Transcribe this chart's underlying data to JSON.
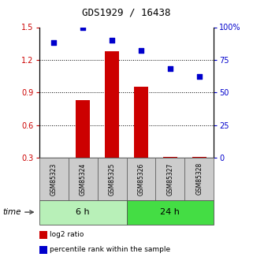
{
  "title": "GDS1929 / 16438",
  "samples": [
    "GSM85323",
    "GSM85324",
    "GSM85325",
    "GSM85326",
    "GSM85327",
    "GSM85328"
  ],
  "log2_ratio": [
    0.3,
    0.83,
    1.28,
    0.95,
    0.31,
    0.31
  ],
  "percentile_rank": [
    88,
    100,
    90,
    82,
    68,
    62
  ],
  "ylim_left": [
    0.3,
    1.5
  ],
  "ylim_right": [
    0,
    100
  ],
  "yticks_left": [
    0.3,
    0.6,
    0.9,
    1.2,
    1.5
  ],
  "yticks_right": [
    0,
    25,
    50,
    75,
    100
  ],
  "ytick_labels_right": [
    "0",
    "25",
    "50",
    "75",
    "100%"
  ],
  "groups": [
    {
      "label": "6 h",
      "color_light": "#b8f0b8",
      "color_dark": "#55dd55"
    },
    {
      "label": "24 h",
      "color_light": "#44cc44",
      "color_dark": "#22aa22"
    }
  ],
  "bar_color": "#cc0000",
  "scatter_color": "#0000cc",
  "bar_width": 0.5,
  "legend_items": [
    {
      "label": "log2 ratio",
      "color": "#cc0000"
    },
    {
      "label": "percentile rank within the sample",
      "color": "#0000cc"
    }
  ],
  "time_label": "time",
  "background_color": "#ffffff",
  "plot_bg": "#ffffff",
  "sample_bg": "#cccccc",
  "gridline_ticks": [
    0.6,
    0.9,
    1.2
  ]
}
